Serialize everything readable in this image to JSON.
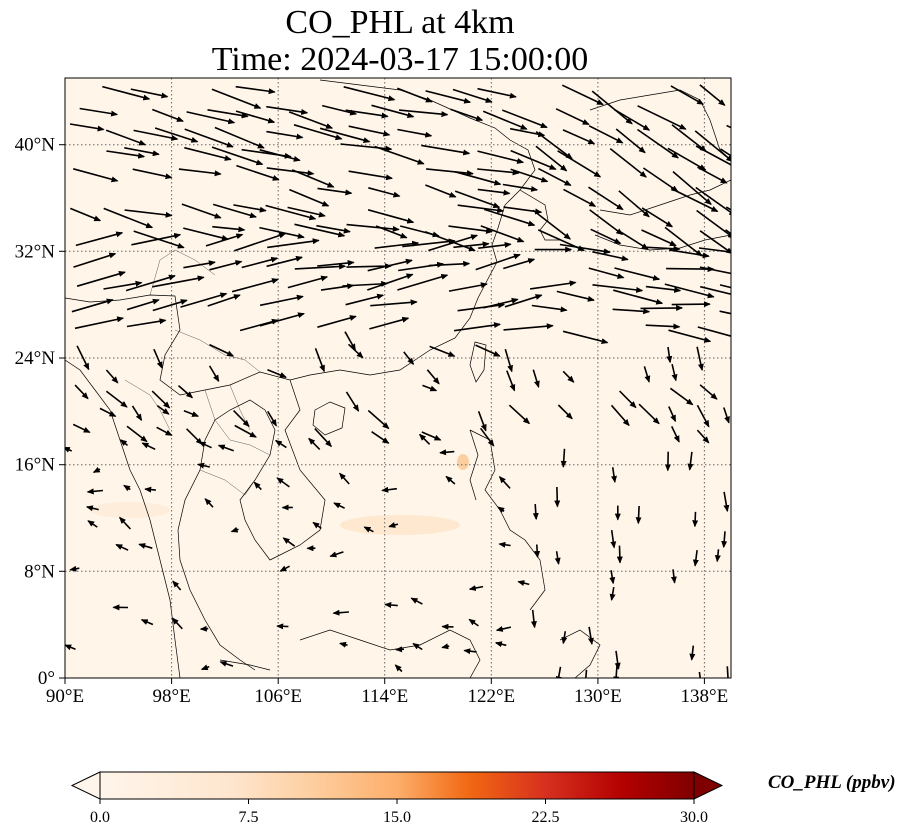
{
  "title": {
    "line1": "CO_PHL at 4km",
    "line2": "Time: 2024-03-17 15:00:00"
  },
  "map": {
    "lon_range": [
      90,
      140
    ],
    "lat_range": [
      0,
      45
    ],
    "background_color": "#fff5e8",
    "gridlines": "dotted",
    "x_ticks": [
      "90°E",
      "98°E",
      "106°E",
      "114°E",
      "122°E",
      "130°E",
      "138°E"
    ],
    "y_ticks": [
      "0°",
      "8°N",
      "16°N",
      "24°N",
      "32°N",
      "40°N"
    ],
    "x_tick_values": [
      90,
      98,
      106,
      114,
      122,
      130,
      138
    ],
    "y_tick_values": [
      0,
      8,
      16,
      24,
      32,
      40
    ],
    "wind_arrows": "black quiver vectors; strong westerlies north of 24°N, weak variable flow to the south"
  },
  "colorbar": {
    "label": "CO_PHL (ppbv)",
    "ticks": [
      "0.0",
      "7.5",
      "15.0",
      "22.5",
      "30.0"
    ],
    "min": 0,
    "max": 30,
    "colormap": [
      "#fff5eb",
      "#fdd0a2",
      "#fd8d3c",
      "#d94801",
      "#a50f15",
      "#7f0000"
    ],
    "extend": "both"
  }
}
